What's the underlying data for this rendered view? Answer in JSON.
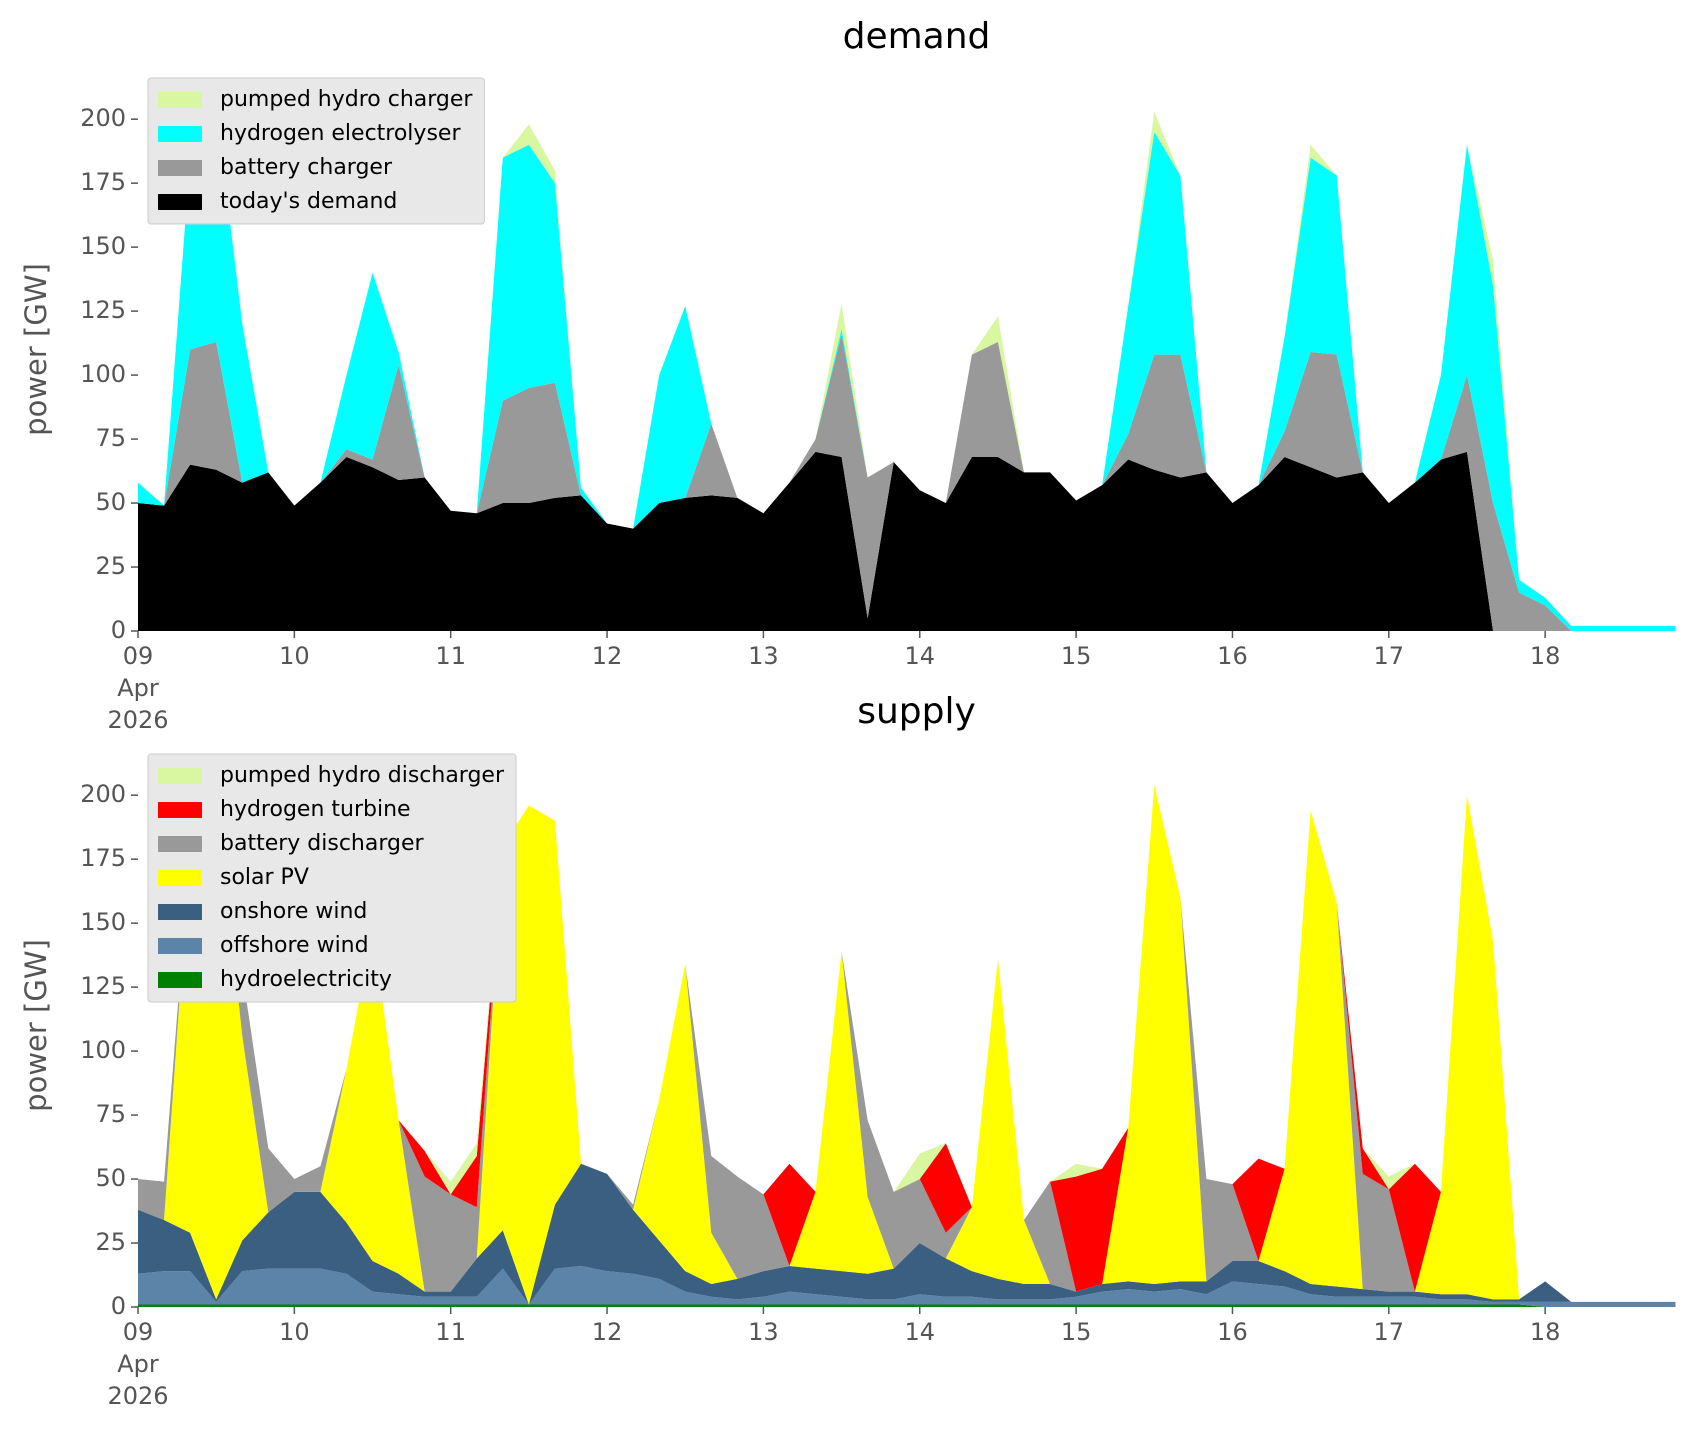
{
  "chart_data": [
    {
      "type": "area",
      "title": "demand",
      "ylabel": "power [GW]",
      "stacked": true,
      "legend": "upper left",
      "x": [
        "2026-04-09T00:00",
        "2026-04-09T04:00",
        "2026-04-09T08:00",
        "2026-04-09T12:00",
        "2026-04-09T16:00",
        "2026-04-09T20:00",
        "2026-04-10T00:00",
        "2026-04-10T04:00",
        "2026-04-10T08:00",
        "2026-04-10T12:00",
        "2026-04-10T16:00",
        "2026-04-10T20:00",
        "2026-04-11T00:00",
        "2026-04-11T04:00",
        "2026-04-11T08:00",
        "2026-04-11T12:00",
        "2026-04-11T16:00",
        "2026-04-11T20:00",
        "2026-04-12T00:00",
        "2026-04-12T04:00",
        "2026-04-12T08:00",
        "2026-04-12T12:00",
        "2026-04-12T16:00",
        "2026-04-12T20:00",
        "2026-04-13T00:00",
        "2026-04-13T04:00",
        "2026-04-13T08:00",
        "2026-04-13T12:00",
        "2026-04-13T16:00",
        "2026-04-13T20:00",
        "2026-04-14T00:00",
        "2026-04-14T04:00",
        "2026-04-14T08:00",
        "2026-04-14T12:00",
        "2026-04-14T16:00",
        "2026-04-14T20:00",
        "2026-04-15T00:00",
        "2026-04-15T04:00",
        "2026-04-15T08:00",
        "2026-04-15T12:00",
        "2026-04-15T16:00",
        "2026-04-15T20:00",
        "2026-04-16T00:00",
        "2026-04-16T04:00",
        "2026-04-16T08:00",
        "2026-04-16T12:00",
        "2026-04-16T16:00",
        "2026-04-16T20:00",
        "2026-04-17T00:00",
        "2026-04-17T04:00",
        "2026-04-17T08:00",
        "2026-04-17T12:00",
        "2026-04-17T16:00",
        "2026-04-17T20:00",
        "2026-04-18T00:00",
        "2026-04-18T04:00",
        "2026-04-18T08:00",
        "2026-04-18T12:00",
        "2026-04-18T16:00",
        "2026-04-18T20:00"
      ],
      "xlim": [
        "2026-04-09T00:00",
        "2026-04-18T23:00"
      ],
      "xticks": [
        {
          "value": "2026-04-09T00:00",
          "label": "09\nApr\n2026"
        },
        {
          "value": "2026-04-10T00:00",
          "label": "10"
        },
        {
          "value": "2026-04-11T00:00",
          "label": "11"
        },
        {
          "value": "2026-04-12T00:00",
          "label": "12"
        },
        {
          "value": "2026-04-13T00:00",
          "label": "13"
        },
        {
          "value": "2026-04-14T00:00",
          "label": "14"
        },
        {
          "value": "2026-04-15T00:00",
          "label": "15"
        },
        {
          "value": "2026-04-16T00:00",
          "label": "16"
        },
        {
          "value": "2026-04-17T00:00",
          "label": "17"
        },
        {
          "value": "2026-04-18T00:00",
          "label": "18"
        }
      ],
      "ylim": [
        0,
        220
      ],
      "yticks": [
        0,
        25,
        50,
        75,
        100,
        125,
        150,
        175,
        200
      ],
      "series": [
        {
          "name": "pumped hydro charger",
          "color": "#d9f7a1",
          "values": [
            0,
            0,
            0,
            0,
            0,
            0,
            0,
            0,
            0,
            0,
            0,
            0,
            0,
            0,
            0,
            8,
            5,
            0,
            0,
            0,
            0,
            0,
            0,
            0,
            0,
            0,
            0,
            10,
            0,
            0,
            0,
            0,
            0,
            10,
            0,
            0,
            0,
            0,
            0,
            8,
            0,
            0,
            0,
            0,
            0,
            5,
            0,
            0,
            0,
            0,
            0,
            0,
            10,
            0,
            0,
            0,
            0,
            0,
            0,
            0
          ]
        },
        {
          "name": "hydrogen electrolyser",
          "color": "#00ffff",
          "values": [
            8,
            0,
            75,
            92,
            62,
            0,
            0,
            0,
            29,
            73,
            5,
            0,
            0,
            0,
            95,
            95,
            78,
            3,
            0,
            0,
            50,
            75,
            0,
            0,
            0,
            0,
            0,
            2,
            0,
            0,
            0,
            0,
            0,
            0,
            0,
            0,
            0,
            0,
            50,
            87,
            70,
            0,
            0,
            0,
            37,
            76,
            70,
            0,
            0,
            0,
            33,
            90,
            85,
            5,
            3,
            2,
            2,
            2,
            2,
            2
          ]
        },
        {
          "name": "battery charger",
          "color": "#999999",
          "values": [
            0,
            0,
            45,
            50,
            0,
            0,
            0,
            0,
            3,
            3,
            45,
            0,
            0,
            0,
            40,
            45,
            45,
            0,
            0,
            0,
            0,
            0,
            28,
            0,
            0,
            0,
            5,
            48,
            55,
            0,
            0,
            0,
            40,
            45,
            0,
            0,
            0,
            0,
            10,
            45,
            48,
            0,
            0,
            0,
            10,
            45,
            48,
            0,
            0,
            0,
            0,
            30,
            50,
            15,
            10,
            0,
            0,
            0,
            0,
            0
          ]
        },
        {
          "name": "today's demand",
          "color": "#000000",
          "values": [
            50,
            49,
            65,
            63,
            58,
            62,
            49,
            58,
            68,
            64,
            59,
            60,
            47,
            46,
            50,
            50,
            52,
            53,
            42,
            40,
            50,
            52,
            53,
            52,
            46,
            58,
            70,
            68,
            5,
            66,
            55,
            50,
            68,
            68,
            62,
            62,
            51,
            57,
            67,
            63,
            60,
            62,
            50,
            57,
            68,
            64,
            60,
            62,
            50,
            58,
            67,
            70,
            0,
            0,
            0,
            0,
            0,
            0,
            0,
            0
          ]
        }
      ]
    },
    {
      "type": "area",
      "title": "supply",
      "ylabel": "power [GW]",
      "stacked": true,
      "legend": "upper left",
      "x": [
        "2026-04-09T00:00",
        "2026-04-09T04:00",
        "2026-04-09T08:00",
        "2026-04-09T12:00",
        "2026-04-09T16:00",
        "2026-04-09T20:00",
        "2026-04-10T00:00",
        "2026-04-10T04:00",
        "2026-04-10T08:00",
        "2026-04-10T12:00",
        "2026-04-10T16:00",
        "2026-04-10T20:00",
        "2026-04-11T00:00",
        "2026-04-11T04:00",
        "2026-04-11T08:00",
        "2026-04-11T12:00",
        "2026-04-11T16:00",
        "2026-04-11T20:00",
        "2026-04-12T00:00",
        "2026-04-12T04:00",
        "2026-04-12T08:00",
        "2026-04-12T12:00",
        "2026-04-12T16:00",
        "2026-04-12T20:00",
        "2026-04-13T00:00",
        "2026-04-13T04:00",
        "2026-04-13T08:00",
        "2026-04-13T12:00",
        "2026-04-13T16:00",
        "2026-04-13T20:00",
        "2026-04-14T00:00",
        "2026-04-14T04:00",
        "2026-04-14T08:00",
        "2026-04-14T12:00",
        "2026-04-14T16:00",
        "2026-04-14T20:00",
        "2026-04-15T00:00",
        "2026-04-15T04:00",
        "2026-04-15T08:00",
        "2026-04-15T12:00",
        "2026-04-15T16:00",
        "2026-04-15T20:00",
        "2026-04-16T00:00",
        "2026-04-16T04:00",
        "2026-04-16T08:00",
        "2026-04-16T12:00",
        "2026-04-16T16:00",
        "2026-04-16T20:00",
        "2026-04-17T00:00",
        "2026-04-17T04:00",
        "2026-04-17T08:00",
        "2026-04-17T12:00",
        "2026-04-17T16:00",
        "2026-04-17T20:00",
        "2026-04-18T00:00",
        "2026-04-18T04:00",
        "2026-04-18T08:00",
        "2026-04-18T12:00",
        "2026-04-18T16:00",
        "2026-04-18T20:00"
      ],
      "xlim": [
        "2026-04-09T00:00",
        "2026-04-18T23:00"
      ],
      "xticks": [
        {
          "value": "2026-04-09T00:00",
          "label": "09\nApr\n2026"
        },
        {
          "value": "2026-04-10T00:00",
          "label": "10"
        },
        {
          "value": "2026-04-11T00:00",
          "label": "11"
        },
        {
          "value": "2026-04-12T00:00",
          "label": "12"
        },
        {
          "value": "2026-04-13T00:00",
          "label": "13"
        },
        {
          "value": "2026-04-14T00:00",
          "label": "14"
        },
        {
          "value": "2026-04-15T00:00",
          "label": "15"
        },
        {
          "value": "2026-04-16T00:00",
          "label": "16"
        },
        {
          "value": "2026-04-17T00:00",
          "label": "17"
        },
        {
          "value": "2026-04-18T00:00",
          "label": "18"
        }
      ],
      "ylim": [
        0,
        220
      ],
      "yticks": [
        0,
        25,
        50,
        75,
        100,
        125,
        150,
        175,
        200
      ],
      "series": [
        {
          "name": "pumped hydro discharger",
          "color": "#d9f7a1",
          "values": [
            0,
            0,
            0,
            0,
            0,
            0,
            0,
            0,
            0,
            0,
            0,
            0,
            5,
            5,
            0,
            0,
            0,
            0,
            0,
            0,
            0,
            0,
            0,
            0,
            0,
            0,
            0,
            0,
            0,
            0,
            10,
            0,
            0,
            0,
            0,
            0,
            5,
            0,
            0,
            0,
            0,
            0,
            0,
            0,
            0,
            0,
            0,
            0,
            5,
            0,
            0,
            0,
            0,
            0,
            0,
            0,
            0,
            0,
            0,
            0
          ]
        },
        {
          "name": "hydrogen turbine",
          "color": "#ff0000",
          "values": [
            0,
            0,
            0,
            0,
            0,
            0,
            0,
            0,
            0,
            0,
            0,
            10,
            0,
            20,
            0,
            0,
            0,
            0,
            0,
            0,
            0,
            0,
            0,
            0,
            0,
            40,
            0,
            0,
            0,
            0,
            0,
            35,
            0,
            0,
            0,
            0,
            45,
            45,
            0,
            0,
            0,
            0,
            0,
            40,
            0,
            0,
            0,
            10,
            0,
            50,
            0,
            0,
            0,
            0,
            0,
            0,
            0,
            0,
            0,
            0
          ]
        },
        {
          "name": "battery discharger",
          "color": "#999999",
          "values": [
            12,
            15,
            0,
            0,
            25,
            25,
            5,
            10,
            0,
            0,
            0,
            45,
            38,
            20,
            0,
            0,
            0,
            0,
            0,
            2,
            0,
            0,
            30,
            40,
            30,
            0,
            0,
            0,
            30,
            30,
            25,
            10,
            0,
            0,
            0,
            40,
            0,
            0,
            0,
            0,
            0,
            40,
            30,
            0,
            0,
            0,
            0,
            45,
            40,
            0,
            0,
            0,
            0,
            0,
            0,
            0,
            0,
            0,
            0,
            0
          ]
        },
        {
          "name": "solar PV",
          "color": "#ffff00",
          "values": [
            0,
            0,
            150,
            200,
            80,
            0,
            0,
            0,
            60,
            130,
            60,
            0,
            0,
            0,
            150,
            195,
            150,
            0,
            0,
            0,
            55,
            120,
            20,
            0,
            0,
            0,
            30,
            125,
            30,
            0,
            0,
            0,
            25,
            125,
            25,
            0,
            0,
            0,
            60,
            195,
            150,
            0,
            0,
            0,
            40,
            185,
            150,
            0,
            0,
            0,
            40,
            195,
            140,
            0,
            0,
            0,
            0,
            0,
            0,
            0
          ]
        },
        {
          "name": "onshore wind",
          "color": "#3b5f80",
          "values": [
            25,
            20,
            15,
            1,
            12,
            22,
            30,
            30,
            20,
            12,
            8,
            2,
            2,
            15,
            15,
            0,
            25,
            40,
            38,
            25,
            15,
            8,
            5,
            8,
            10,
            10,
            10,
            10,
            10,
            12,
            20,
            15,
            10,
            8,
            6,
            6,
            2,
            3,
            3,
            3,
            3,
            5,
            8,
            9,
            6,
            4,
            4,
            3,
            2,
            2,
            2,
            2,
            1,
            1,
            8,
            0,
            0,
            0,
            0,
            0
          ]
        },
        {
          "name": "offshore wind",
          "color": "#5c84a8",
          "values": [
            12,
            13,
            13,
            1,
            13,
            14,
            14,
            14,
            12,
            5,
            4,
            3,
            3,
            3,
            14,
            0,
            14,
            15,
            13,
            12,
            10,
            5,
            3,
            2,
            3,
            5,
            4,
            3,
            2,
            2,
            4,
            3,
            3,
            2,
            2,
            2,
            3,
            5,
            6,
            5,
            6,
            4,
            9,
            8,
            7,
            4,
            3,
            3,
            3,
            3,
            2,
            2,
            1,
            1,
            2,
            2,
            2,
            2,
            2,
            2
          ]
        },
        {
          "name": "hydroelectricity",
          "color": "#008000",
          "values": [
            1,
            1,
            1,
            1,
            1,
            1,
            1,
            1,
            1,
            1,
            1,
            1,
            1,
            1,
            1,
            1,
            1,
            1,
            1,
            1,
            1,
            1,
            1,
            1,
            1,
            1,
            1,
            1,
            1,
            1,
            1,
            1,
            1,
            1,
            1,
            1,
            1,
            1,
            1,
            1,
            1,
            1,
            1,
            1,
            1,
            1,
            1,
            1,
            1,
            1,
            1,
            1,
            1,
            1,
            0,
            0,
            0,
            0,
            0,
            0
          ]
        }
      ]
    }
  ]
}
